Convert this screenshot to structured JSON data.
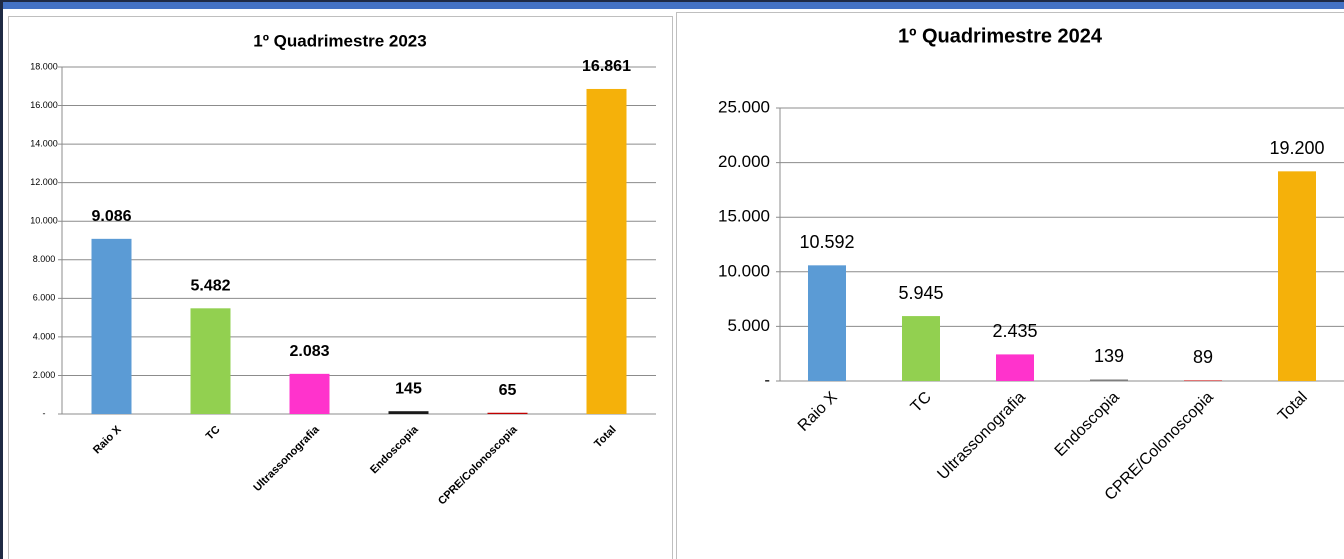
{
  "chart_data": [
    {
      "type": "bar",
      "title": "1º Quadrimestre 2023",
      "categories": [
        "Raio X",
        "TC",
        "Ultrassonografia",
        "Endoscopia",
        "CPRE/Colonoscopia",
        "Total"
      ],
      "values": [
        9086,
        5482,
        2083,
        145,
        65,
        16861
      ],
      "value_labels": [
        "9.086",
        "5.482",
        "2.083",
        "145",
        "65",
        "16.861"
      ],
      "colors": [
        "#5b9bd5",
        "#92d050",
        "#ff33cc",
        "#1a1a1a",
        "#c00000",
        "#f5b10a"
      ],
      "ylim": [
        0,
        18000
      ],
      "yticks": [
        {
          "value": 0,
          "label": "-"
        },
        {
          "value": 2000,
          "label": "2.000"
        },
        {
          "value": 4000,
          "label": "4.000"
        },
        {
          "value": 6000,
          "label": "6.000"
        },
        {
          "value": 8000,
          "label": "8.000"
        },
        {
          "value": 10000,
          "label": "10.000"
        },
        {
          "value": 12000,
          "label": "12.000"
        },
        {
          "value": 14000,
          "label": "14.000"
        },
        {
          "value": 16000,
          "label": "16.000"
        },
        {
          "value": 18000,
          "label": "18.000"
        }
      ],
      "grid": true
    },
    {
      "type": "bar",
      "title": "1º Quadrimestre 2024",
      "categories": [
        "Raio X",
        "TC",
        "Ultrassonografia",
        "Endoscopia",
        "CPRE/Colonoscopia",
        "Total"
      ],
      "values": [
        10592,
        5945,
        2435,
        139,
        89,
        19200
      ],
      "value_labels": [
        "10.592",
        "5.945",
        "2.435",
        "139",
        "89",
        "19.200"
      ],
      "colors": [
        "#5b9bd5",
        "#92d050",
        "#ff33cc",
        "#7f7f7f",
        "#e07070",
        "#f5b10a"
      ],
      "ylim": [
        0,
        25000
      ],
      "yticks": [
        {
          "value": 0,
          "label": "-"
        },
        {
          "value": 5000,
          "label": "5.000"
        },
        {
          "value": 10000,
          "label": "10.000"
        },
        {
          "value": 15000,
          "label": "15.000"
        },
        {
          "value": 20000,
          "label": "20.000"
        },
        {
          "value": 25000,
          "label": "25.000"
        }
      ],
      "grid": true
    }
  ]
}
